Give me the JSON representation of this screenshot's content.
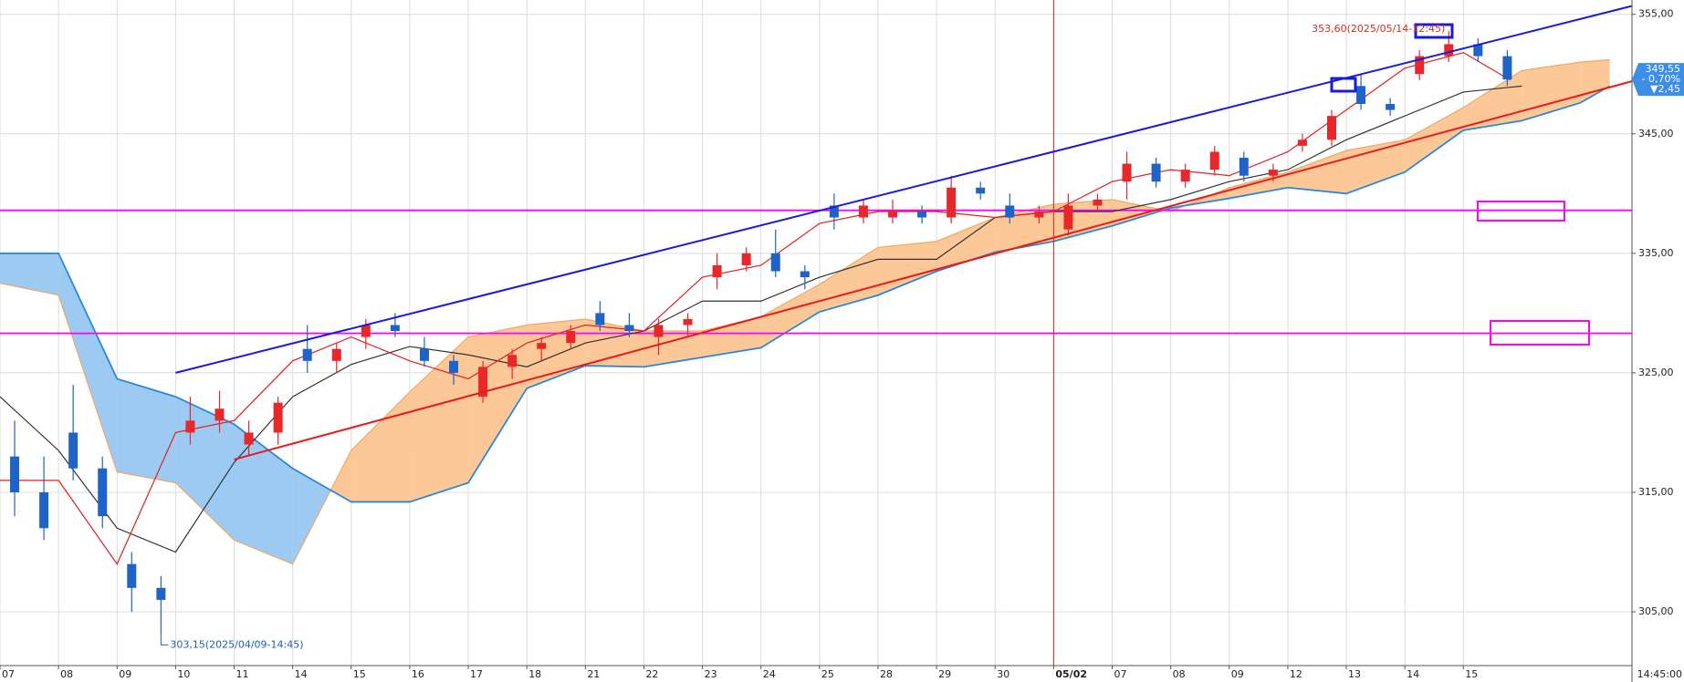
{
  "chart_data": {
    "type": "candlestick",
    "categories": [
      "07",
      "08",
      "09",
      "10",
      "11",
      "14",
      "15",
      "16",
      "17",
      "18",
      "21",
      "22",
      "23",
      "24",
      "25",
      "28",
      "29",
      "30",
      "05/02",
      "07",
      "08",
      "09",
      "12",
      "13",
      "14",
      "15"
    ],
    "xticks": [
      0,
      1,
      2,
      3,
      4,
      5,
      6,
      7,
      8,
      9,
      10,
      11,
      12,
      13,
      14,
      15,
      16,
      17,
      18,
      19,
      20,
      21,
      22,
      23,
      24,
      25
    ],
    "xlim": [
      0,
      27.88
    ],
    "ylim": [
      300.5,
      356.2
    ],
    "yticks": [
      {
        "value": 305,
        "label": "305,00"
      },
      {
        "value": 315,
        "label": "315,00"
      },
      {
        "value": 325,
        "label": "325,00"
      },
      {
        "value": 335,
        "label": "335,00"
      },
      {
        "value": 345,
        "label": "345,00"
      },
      {
        "value": 355,
        "label": "355,00"
      }
    ],
    "grid": true,
    "up_color": "#e8272b",
    "down_color": "#1e63c8",
    "candles": {
      "x": [
        0.25,
        0.75,
        1.25,
        1.75,
        2.25,
        2.75,
        3.25,
        3.75,
        4.25,
        4.75,
        5.25,
        5.75,
        6.25,
        6.75,
        7.25,
        7.75,
        8.25,
        8.75,
        9.25,
        9.75,
        10.25,
        10.75,
        11.25,
        11.75,
        12.25,
        12.75,
        13.25,
        13.75,
        14.25,
        14.75,
        15.25,
        15.75,
        16.25,
        16.75,
        17.25,
        17.75,
        18.25,
        18.75,
        19.25,
        19.75,
        20.25,
        20.75,
        21.25,
        21.75,
        22.25,
        22.75,
        23.25,
        23.75,
        24.25,
        24.75,
        25.25,
        25.75
      ],
      "open": [
        318,
        315,
        320,
        317,
        309,
        307,
        320,
        321,
        319,
        320,
        327,
        326,
        328,
        329,
        327,
        326,
        323,
        325.5,
        327,
        327.5,
        330,
        329,
        328,
        329,
        333,
        334,
        335,
        333.5,
        339,
        338,
        338,
        338.5,
        338,
        340.5,
        339,
        338,
        337,
        339,
        341,
        342.5,
        341,
        342,
        343,
        341.5,
        344,
        344.5,
        349,
        347.5,
        350,
        351.5,
        352.5,
        351.5
      ],
      "high": [
        321,
        318,
        324,
        318,
        310,
        308,
        323,
        323.5,
        321,
        323,
        329,
        327.5,
        329.5,
        330,
        328,
        326.5,
        326,
        327,
        328,
        329,
        331,
        330,
        329.5,
        330,
        335,
        335.5,
        337,
        334,
        340,
        339.5,
        339.5,
        339,
        341.5,
        341,
        340,
        339,
        340,
        340,
        343.5,
        343,
        342.5,
        344,
        343.5,
        342.5,
        345,
        347,
        350,
        348,
        352,
        353.6,
        353,
        352
      ],
      "low": [
        313,
        311,
        316,
        312,
        305,
        303.15,
        319,
        320,
        318,
        319,
        325,
        325,
        327,
        328,
        325.5,
        324,
        322.5,
        324.5,
        326,
        327,
        328.5,
        328,
        326.5,
        328,
        332,
        333.5,
        333,
        332,
        337,
        337.5,
        337.5,
        337.5,
        337.5,
        339.5,
        337.5,
        337.5,
        336.5,
        338.5,
        339.5,
        340.5,
        340.5,
        341.5,
        341,
        341,
        343.5,
        344,
        347,
        346.5,
        349.5,
        351,
        351,
        349
      ],
      "close": [
        315,
        312,
        317,
        313,
        307,
        306,
        321,
        322,
        320,
        322.5,
        326,
        327,
        329,
        328.5,
        326,
        325,
        325.5,
        326.5,
        327.5,
        328.5,
        329,
        328.5,
        329,
        329.5,
        334,
        335,
        333.5,
        333,
        338,
        339,
        338.5,
        338,
        340.5,
        340,
        338,
        338.5,
        339,
        339.5,
        342.5,
        341,
        342,
        343.5,
        341.5,
        342,
        344.5,
        346.5,
        347.5,
        347,
        351.5,
        352.5,
        351.5,
        349.55
      ]
    },
    "cloud": {
      "colors": [
        "#fcc898",
        "#9ccaf2"
      ],
      "edge_colors": [
        "#f0a860",
        "#2a88d8"
      ],
      "x": [
        0,
        1,
        2,
        3,
        4,
        5,
        6,
        7,
        8,
        9,
        10,
        11,
        12,
        13,
        14,
        15,
        16,
        17,
        18,
        19,
        20,
        21,
        22,
        23,
        24,
        25,
        26,
        27,
        27.5
      ],
      "span_a": [
        332.5,
        331.5,
        316.7,
        315.8,
        311,
        309,
        318.5,
        323.4,
        328,
        329,
        329.5,
        328.5,
        328.5,
        329.7,
        332.4,
        335.5,
        336,
        338,
        339.1,
        339.5,
        338.5,
        340.5,
        341.8,
        343.6,
        344.5,
        347.2,
        350.3,
        351,
        351.2
      ],
      "span_b": [
        335,
        335,
        324.5,
        323,
        320.7,
        317,
        314.2,
        314.2,
        315.8,
        323.7,
        325.6,
        325.5,
        326.3,
        327.1,
        330.1,
        331.5,
        333.5,
        335.1,
        336,
        337.3,
        338.8,
        339.6,
        340.5,
        340,
        341.8,
        345.3,
        346.1,
        347.6,
        349
      ]
    },
    "series": [
      {
        "color": "#333333",
        "x": [
          0,
          1,
          2,
          3,
          4,
          5,
          6,
          7,
          8,
          9,
          10,
          11,
          12,
          13,
          14,
          15,
          16,
          17,
          18,
          19,
          20,
          21,
          22,
          23,
          24,
          25,
          26
        ],
        "values": [
          323,
          318.5,
          312,
          310,
          317.5,
          323,
          325.7,
          327.2,
          326.5,
          325.5,
          327.5,
          328.5,
          331,
          331,
          333,
          334.5,
          334.5,
          338,
          338.5,
          338.5,
          339.5,
          341,
          342,
          344.5,
          346.5,
          348.5,
          349
        ]
      },
      {
        "color": "#e02020",
        "x": [
          0,
          1,
          2,
          3,
          4,
          5,
          6,
          7,
          8,
          9,
          10,
          11,
          12,
          13,
          14,
          15,
          16,
          17,
          18,
          19,
          20,
          21,
          22,
          23,
          24,
          25,
          25.8
        ],
        "values": [
          316,
          316,
          309,
          320,
          321,
          326,
          328,
          326,
          324.5,
          327.5,
          329,
          328.5,
          333,
          334,
          337.5,
          338.5,
          338.5,
          338,
          338.5,
          341,
          342,
          341.5,
          343.5,
          347,
          350.5,
          351.8,
          349.5
        ]
      }
    ],
    "trendlines": [
      {
        "color": "#1a1adb",
        "x": [
          3,
          27.88
        ],
        "y": [
          325,
          355.7
        ]
      },
      {
        "color": "#e81a1a",
        "x": [
          4,
          27.88
        ],
        "y": [
          317.75,
          349.4
        ]
      }
    ],
    "hlines": {
      "color": "#ff00ff",
      "values": [
        338.6,
        328.3
      ]
    },
    "crosshair": {
      "x": 18,
      "color": "#e02020",
      "label": "14:45:00"
    },
    "high_annotation": {
      "x": 24.75,
      "value": 353.6,
      "label": "353,60(2025/05/14-12:45)"
    },
    "low_annotation": {
      "x": 2.75,
      "value": 303.15,
      "label": "303,15(2025/04/09-14:45)"
    },
    "last_price": {
      "value": 349.55,
      "label": "349,55",
      "change_pct": "- 0,70%",
      "change": "▼2,45",
      "color": "#3d8ee6"
    }
  }
}
